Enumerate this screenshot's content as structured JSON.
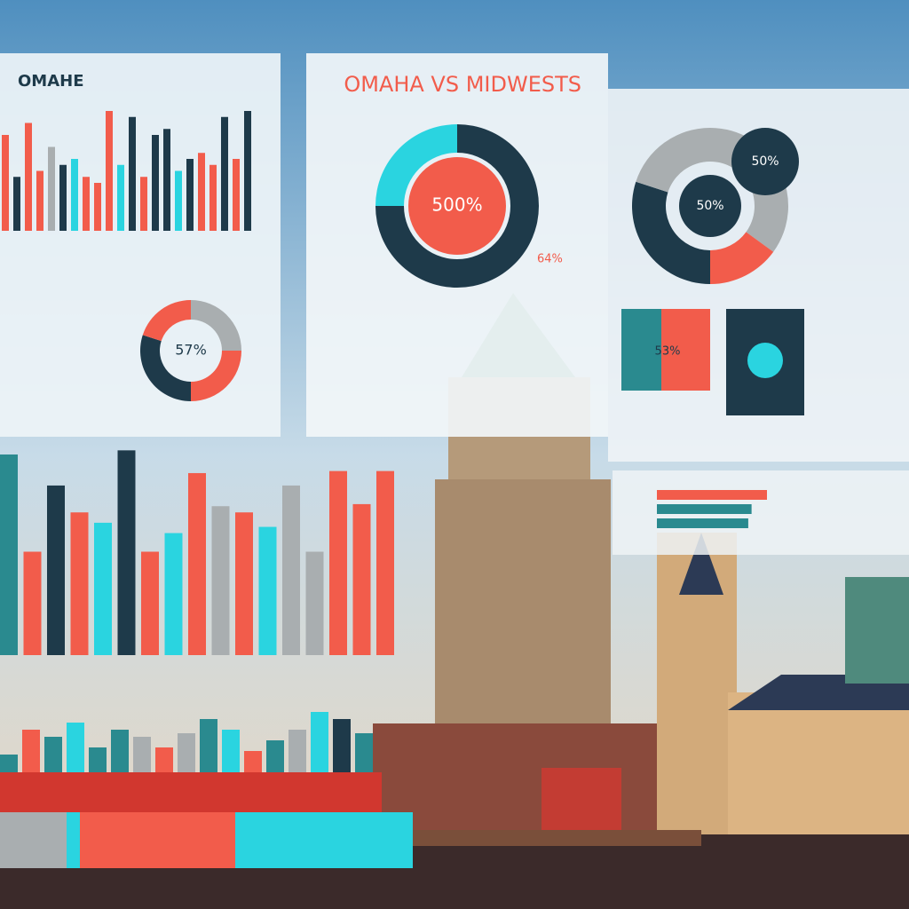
{
  "left_panel": {
    "title": "OMAHE",
    "bars": {
      "values": [
        80,
        45,
        90,
        50,
        70,
        55,
        60,
        45,
        40,
        100,
        55,
        95,
        45,
        80,
        85,
        50,
        60,
        65,
        55,
        95,
        60,
        100
      ],
      "colors": [
        "#f25c4b",
        "#1e3a4a",
        "#f25c4b",
        "#f25c4b",
        "#a9aeb0",
        "#1e3a4a",
        "#2ad4e0",
        "#f25c4b",
        "#f25c4b",
        "#f25c4b",
        "#2ad4e0",
        "#1e3a4a",
        "#f25c4b",
        "#1e3a4a",
        "#1e3a4a",
        "#2ad4e0",
        "#1e3a4a",
        "#f25c4b",
        "#f25c4b",
        "#1e3a4a",
        "#f25c4b",
        "#1e3a4a"
      ]
    },
    "donut": {
      "label": "57%",
      "values": [
        25,
        25,
        30,
        20
      ],
      "colors": [
        "#a9aeb0",
        "#f25c4b",
        "#1e3a4a",
        "#f25c4b"
      ]
    }
  },
  "middle_panel": {
    "title": "OMAHA VS MIDWESTS",
    "donut": {
      "label": "500%",
      "values": [
        75,
        25
      ],
      "colors": [
        "#1e3a4a",
        "#2ad4e0"
      ]
    },
    "side_label": "64%"
  },
  "right_panel": {
    "donut": {
      "label": "50%",
      "values": [
        35,
        15,
        30,
        20
      ],
      "colors": [
        "#a9aeb0",
        "#f25c4b",
        "#1e3a4a",
        "#a9aeb0"
      ]
    },
    "badge_label": "50%",
    "square_label": "53%",
    "hbars": {
      "values": [
        100,
        86,
        83
      ],
      "colors": [
        "#f25c4b",
        "#2a8a8f",
        "#2a8a8f"
      ]
    }
  },
  "main_bars": {
    "values": [
      97,
      50,
      82,
      69,
      64,
      99,
      50,
      59,
      88,
      72,
      69,
      62,
      82,
      50,
      89,
      73,
      89
    ],
    "colors": [
      "#2a8a8f",
      "#f25c4b",
      "#1e3a4a",
      "#f25c4b",
      "#2ad4e0",
      "#1e3a4a",
      "#f25c4b",
      "#2ad4e0",
      "#f25c4b",
      "#a9aeb0",
      "#f25c4b",
      "#2ad4e0",
      "#a9aeb0",
      "#a9aeb0",
      "#f25c4b",
      "#f25c4b",
      "#f25c4b"
    ]
  },
  "lower_bars": {
    "values": [
      25,
      60,
      50,
      70,
      35,
      60,
      50,
      35,
      55,
      75,
      60,
      30,
      45,
      60,
      85,
      75,
      55
    ],
    "colors": [
      "#2a8a8f",
      "#f25c4b",
      "#2a8a8f",
      "#2ad4e0",
      "#2a8a8f",
      "#2a8a8f",
      "#a9aeb0",
      "#f25c4b",
      "#a9aeb0",
      "#2a8a8f",
      "#2ad4e0",
      "#f25c4b",
      "#2a8a8f",
      "#a9aeb0",
      "#2ad4e0",
      "#1e3a4a",
      "#2a8a8f"
    ]
  }
}
